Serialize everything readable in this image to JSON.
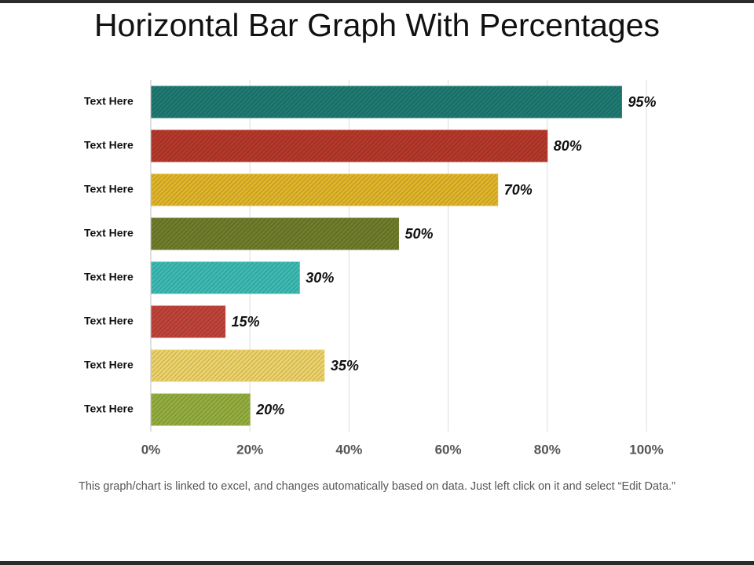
{
  "title": "Horizontal Bar Graph With Percentages",
  "footnote": "This graph/chart is linked to excel, and changes automatically based on data. Just left click on it and select “Edit Data.”",
  "chart_data": {
    "type": "bar",
    "orientation": "horizontal",
    "categories": [
      "Text Here",
      "Text Here",
      "Text Here",
      "Text Here",
      "Text Here",
      "Text Here",
      "Text Here",
      "Text Here"
    ],
    "values": [
      95,
      80,
      70,
      50,
      30,
      15,
      35,
      20
    ],
    "value_suffix": "%",
    "colors": [
      "#1f7a72",
      "#b5392b",
      "#e0b52a",
      "#6f7d2c",
      "#3dbab3",
      "#c0443a",
      "#ecd269",
      "#94ad3f"
    ],
    "xlim": [
      0,
      100
    ],
    "xticks": [
      0,
      20,
      40,
      60,
      80,
      100
    ],
    "xtick_labels": [
      "0%",
      "20%",
      "40%",
      "60%",
      "80%",
      "100%"
    ],
    "grid": "vertical",
    "pattern": "diagonal-hatch"
  }
}
